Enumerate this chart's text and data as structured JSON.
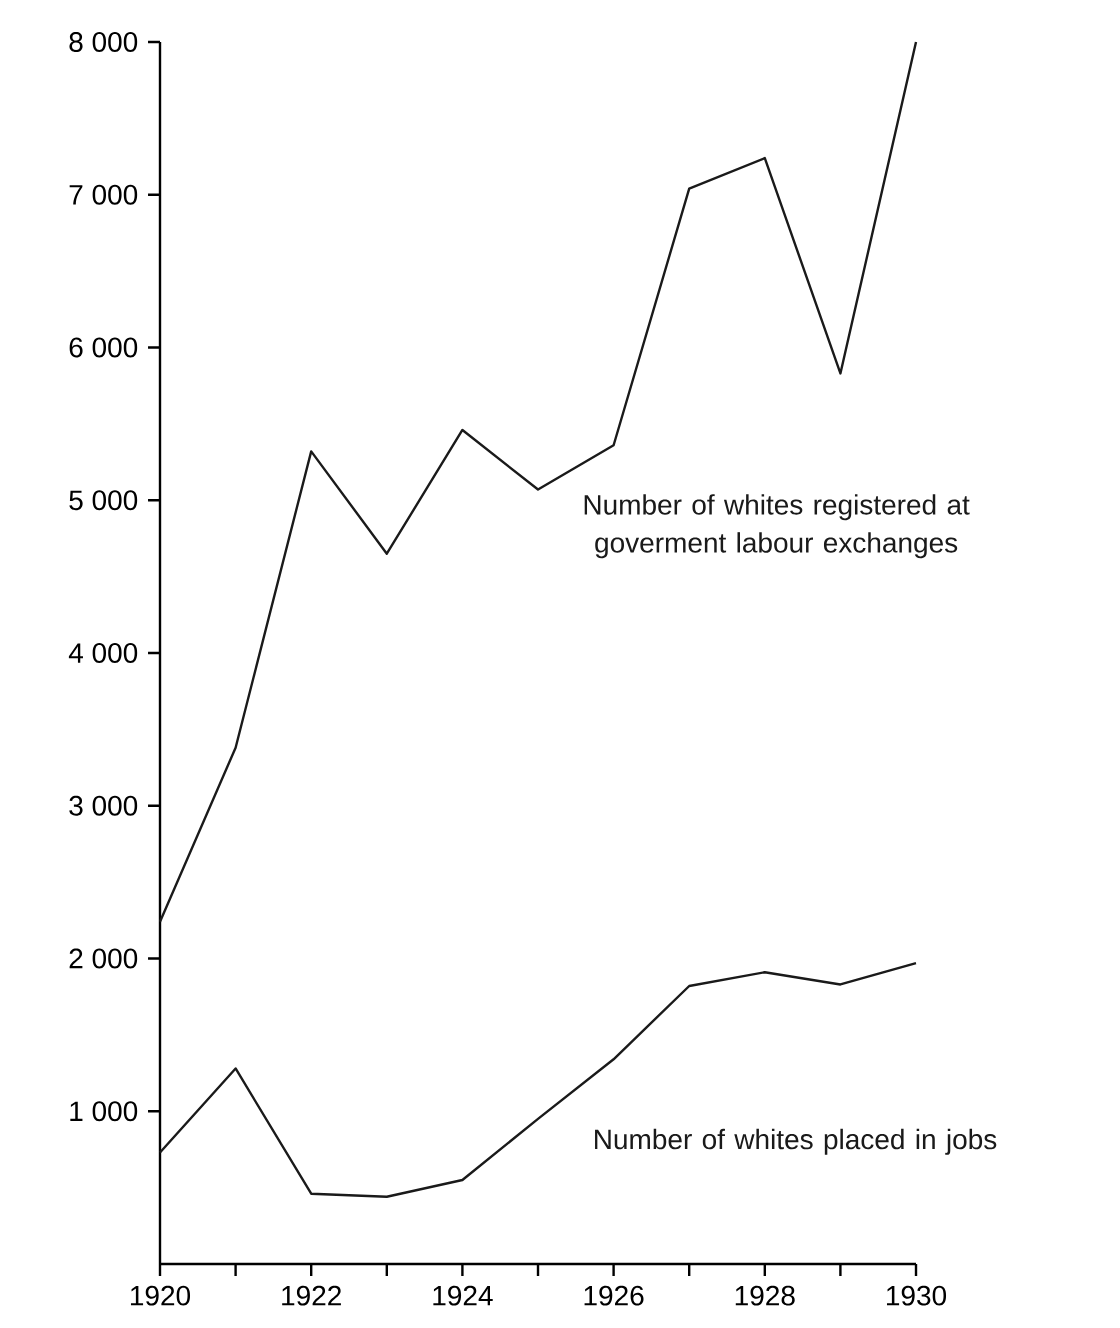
{
  "chart_data": {
    "type": "line",
    "x": [
      1920,
      1921,
      1922,
      1923,
      1924,
      1925,
      1926,
      1927,
      1928,
      1929,
      1930
    ],
    "series": [
      {
        "name": "Number of whites registered at goverment labour exchanges",
        "color": "#1a1a1a",
        "values": [
          2240,
          3380,
          5320,
          4650,
          5460,
          5070,
          5360,
          7040,
          7240,
          5830,
          8000
        ]
      },
      {
        "name": "Number of whites placed in jobs",
        "color": "#1a1a1a",
        "values": [
          730,
          1280,
          460,
          440,
          550,
          950,
          1340,
          1820,
          1910,
          1830,
          1970
        ]
      }
    ],
    "xlim": [
      1920,
      1930
    ],
    "xticks": [
      1920,
      {
        "value": 1921,
        "label": null
      },
      1922,
      {
        "value": 1923,
        "label": null
      },
      1924,
      {
        "value": 1925,
        "label": null
      },
      1926,
      {
        "value": 1927,
        "label": null
      },
      1928,
      {
        "value": 1929,
        "label": null
      },
      1930
    ],
    "ylim": [
      0,
      8000
    ],
    "yticks": [
      {
        "value": 1000,
        "label": "1 000"
      },
      {
        "value": 2000,
        "label": "2 000"
      },
      {
        "value": 3000,
        "label": "3 000"
      },
      {
        "value": 4000,
        "label": "4 000"
      },
      {
        "value": 5000,
        "label": "5 000"
      },
      {
        "value": 6000,
        "label": "6 000"
      },
      {
        "value": 7000,
        "label": "7 000"
      },
      {
        "value": 8000,
        "label": "8 000"
      }
    ],
    "grid": false,
    "legend": false,
    "marker": "none",
    "line_style": "solid"
  }
}
